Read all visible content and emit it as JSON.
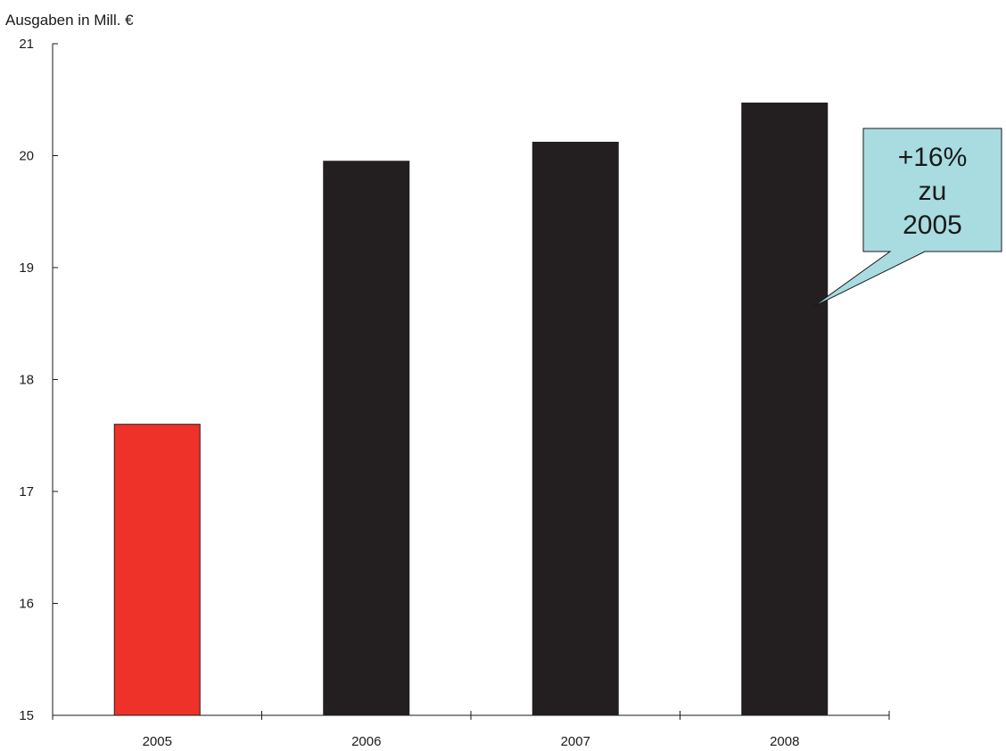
{
  "chart_data": {
    "type": "bar",
    "ylabel": "Ausgaben in Mill. €",
    "categories": [
      "2005",
      "2006",
      "2007",
      "2008"
    ],
    "values": [
      17.6,
      19.95,
      20.12,
      20.47
    ],
    "ylim": [
      15,
      21
    ],
    "yticks": [
      "15",
      "16",
      "17",
      "18",
      "19",
      "20",
      "21"
    ],
    "grid": false,
    "bar_colors": [
      "#ee3129",
      "#231f20",
      "#231f20",
      "#231f20"
    ],
    "annotation": {
      "lines": [
        "+16%",
        "zu",
        "2005"
      ],
      "fill": "#a8dce0",
      "target_category": "2008",
      "target_value": 18.65
    }
  }
}
